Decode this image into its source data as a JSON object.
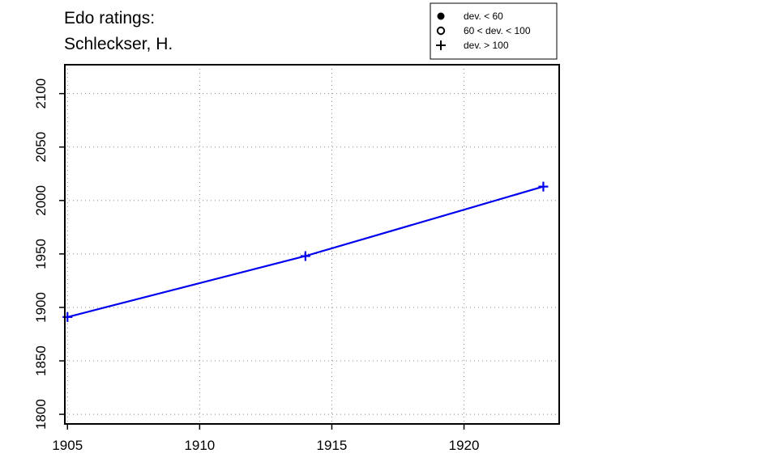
{
  "chart_data": {
    "type": "line",
    "title_lines": [
      "Edo ratings:",
      "Schleckser, H."
    ],
    "xlabel": "",
    "ylabel": "",
    "xlim": [
      1904.9,
      1923.6
    ],
    "ylim": [
      1791,
      2127
    ],
    "x_ticks": [
      1905,
      1910,
      1915,
      1920
    ],
    "y_ticks": [
      1800,
      1850,
      1900,
      1950,
      2000,
      2050,
      2100
    ],
    "grid": true,
    "legend_position": "top-right",
    "legend": [
      {
        "symbol": "filled-circle",
        "label": "dev. < 60"
      },
      {
        "symbol": "open-circle",
        "label": "60 < dev. < 100"
      },
      {
        "symbol": "plus",
        "label": "dev. > 100"
      }
    ],
    "series": [
      {
        "color": "#0000ee",
        "marker": "plus",
        "x": [
          1905,
          1914,
          1923
        ],
        "y": [
          1891,
          1948,
          2013
        ]
      }
    ]
  }
}
